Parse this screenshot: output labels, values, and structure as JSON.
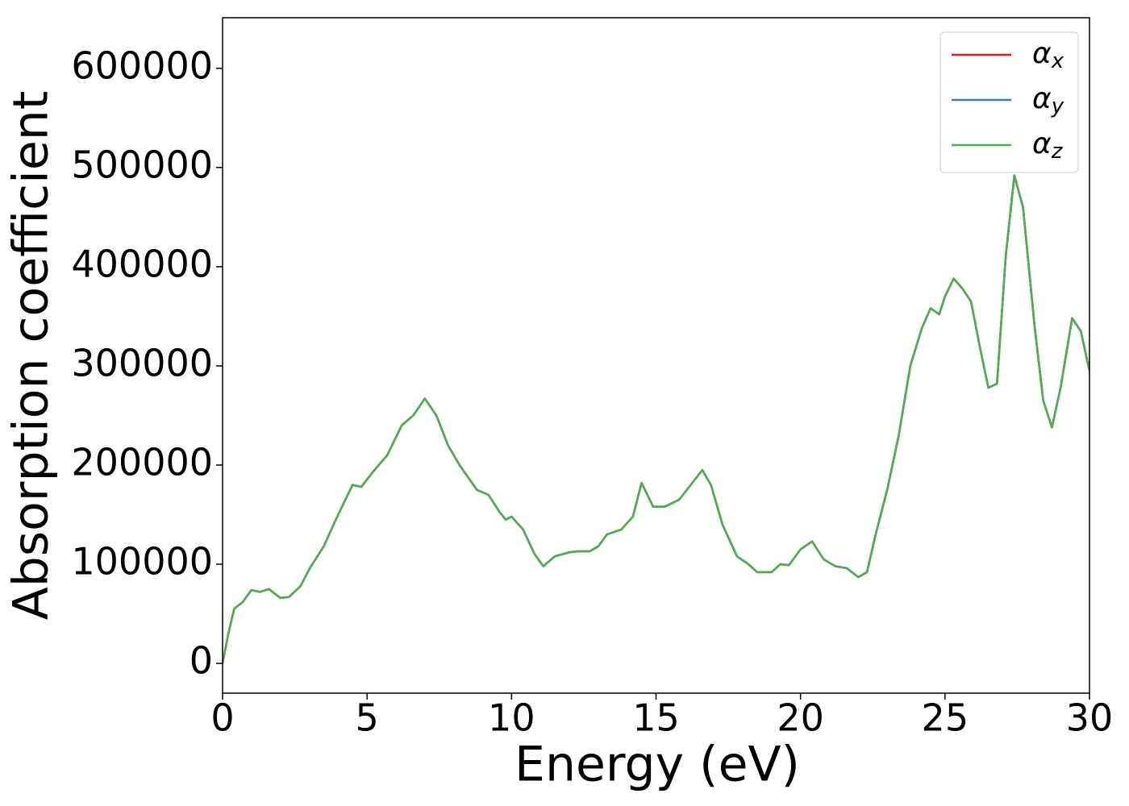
{
  "chart_data": {
    "type": "line",
    "xlabel": "Energy (eV)",
    "ylabel": "Absorption coefficient",
    "xlim": [
      0,
      30
    ],
    "ylim": [
      -30000,
      651000
    ],
    "xticks": [
      0,
      5,
      10,
      15,
      20,
      25,
      30
    ],
    "yticks": [
      0,
      100000,
      200000,
      300000,
      400000,
      500000,
      600000
    ],
    "legend": "upper right",
    "grid": false,
    "x": [
      0,
      0.2,
      0.4,
      0.7,
      1.0,
      1.3,
      1.6,
      2.0,
      2.3,
      2.7,
      3.0,
      3.5,
      4.0,
      4.5,
      4.8,
      5.2,
      5.7,
      6.2,
      6.6,
      7.0,
      7.4,
      7.8,
      8.2,
      8.8,
      9.2,
      9.6,
      9.8,
      10.0,
      10.4,
      10.8,
      11.1,
      11.5,
      12.0,
      12.3,
      12.7,
      13.0,
      13.3,
      13.8,
      14.2,
      14.5,
      14.9,
      15.3,
      15.8,
      16.2,
      16.6,
      16.9,
      17.3,
      17.8,
      18.2,
      18.5,
      19.0,
      19.3,
      19.6,
      20.0,
      20.4,
      20.8,
      21.2,
      21.6,
      22.0,
      22.3,
      22.6,
      23.0,
      23.4,
      23.8,
      24.2,
      24.5,
      24.8,
      25.0,
      25.3,
      25.6,
      25.9,
      26.2,
      26.5,
      26.8,
      27.1,
      27.4,
      27.7,
      28.1,
      28.4,
      28.7,
      29.0,
      29.4,
      29.7,
      30.0
    ],
    "series": [
      {
        "name": "αx",
        "color": "#e41a1c",
        "values": [
          0,
          30000,
          55000,
          62000,
          74000,
          72000,
          75000,
          66000,
          67000,
          78000,
          95000,
          118000,
          150000,
          180000,
          178000,
          193000,
          210000,
          240000,
          250000,
          267000,
          250000,
          220000,
          200000,
          175000,
          170000,
          152000,
          145000,
          148000,
          135000,
          110000,
          98000,
          108000,
          112000,
          113000,
          113000,
          118000,
          130000,
          135000,
          148000,
          182000,
          158000,
          158000,
          165000,
          180000,
          195000,
          180000,
          140000,
          108000,
          100000,
          92000,
          92000,
          100000,
          99000,
          115000,
          123000,
          105000,
          98000,
          96000,
          87000,
          92000,
          130000,
          175000,
          230000,
          300000,
          338000,
          358000,
          352000,
          370000,
          388000,
          378000,
          365000,
          320000,
          278000,
          282000,
          410000,
          492000,
          460000,
          340000,
          265000,
          238000,
          278000,
          348000,
          335000,
          295000
        ]
      },
      {
        "name": "αy",
        "color": "#377eb8",
        "values": [
          0,
          30000,
          55000,
          62000,
          74000,
          72000,
          75000,
          66000,
          67000,
          78000,
          95000,
          118000,
          150000,
          180000,
          178000,
          193000,
          210000,
          240000,
          250000,
          267000,
          250000,
          220000,
          200000,
          175000,
          170000,
          152000,
          145000,
          148000,
          135000,
          110000,
          98000,
          108000,
          112000,
          113000,
          113000,
          118000,
          130000,
          135000,
          148000,
          182000,
          158000,
          158000,
          165000,
          180000,
          195000,
          180000,
          140000,
          108000,
          100000,
          92000,
          92000,
          100000,
          99000,
          115000,
          123000,
          105000,
          98000,
          96000,
          87000,
          92000,
          130000,
          175000,
          230000,
          300000,
          338000,
          358000,
          352000,
          370000,
          388000,
          378000,
          365000,
          320000,
          278000,
          282000,
          410000,
          492000,
          460000,
          340000,
          265000,
          238000,
          278000,
          348000,
          335000,
          295000
        ]
      },
      {
        "name": "αz",
        "color": "#4daf4a",
        "values": [
          0,
          30000,
          55000,
          62000,
          74000,
          72000,
          75000,
          66000,
          67000,
          78000,
          95000,
          118000,
          150000,
          180000,
          178000,
          193000,
          210000,
          240000,
          250000,
          267000,
          250000,
          220000,
          200000,
          175000,
          170000,
          152000,
          145000,
          148000,
          135000,
          110000,
          98000,
          108000,
          112000,
          113000,
          113000,
          118000,
          130000,
          135000,
          148000,
          182000,
          158000,
          158000,
          165000,
          180000,
          195000,
          180000,
          140000,
          108000,
          100000,
          92000,
          92000,
          100000,
          99000,
          115000,
          123000,
          105000,
          98000,
          96000,
          87000,
          92000,
          130000,
          175000,
          230000,
          300000,
          338000,
          358000,
          352000,
          370000,
          388000,
          378000,
          365000,
          320000,
          278000,
          282000,
          410000,
          492000,
          460000,
          340000,
          265000,
          238000,
          278000,
          348000,
          335000,
          295000
        ]
      }
    ]
  }
}
